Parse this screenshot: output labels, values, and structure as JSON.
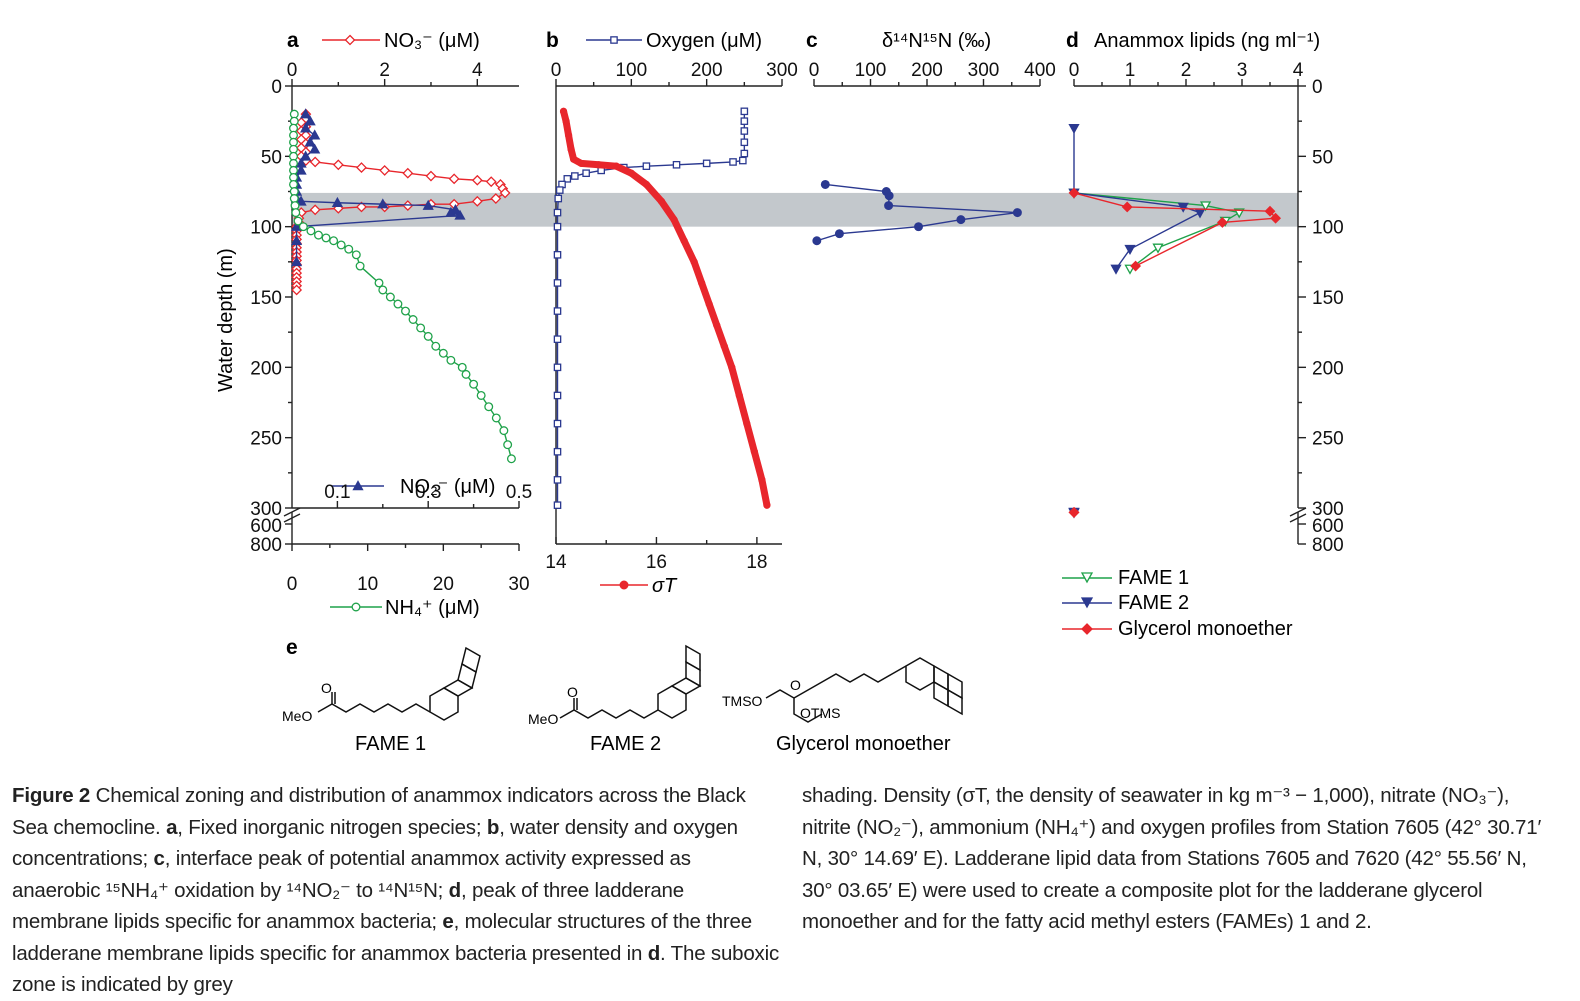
{
  "panels": {
    "a": {
      "letter": "a",
      "no3_label": "NO₃⁻ (μM)",
      "no2_label": "NO₂⁻ (μM)",
      "nh4_label": "NH₄⁺ (μM)"
    },
    "b": {
      "letter": "b",
      "oxygen_label": "Oxygen (μM)",
      "density_label": "σT"
    },
    "c": {
      "letter": "c",
      "label": "δ¹⁴N¹⁵N (‰)"
    },
    "d": {
      "letter": "d",
      "label": "Anammox lipids (ng ml⁻¹)"
    },
    "e": {
      "letter": "e"
    },
    "ylabel": "Water depth (m)"
  },
  "legend_d": [
    "FAME 1",
    "FAME 2",
    "Glycerol monoether"
  ],
  "structures": {
    "fame1": "FAME 1",
    "fame2": "FAME 2",
    "gme": "Glycerol monoether",
    "meo": "MeO",
    "o": "O",
    "tms": "TMSO",
    "otms": "OTMS"
  },
  "colors": {
    "red": "#e8262c",
    "blue": "#2b3990",
    "green": "#1fa24a",
    "shade": "#c3c8cc"
  },
  "chart_data": [
    {
      "type": "scatter",
      "panel": "a",
      "title": "",
      "ylabel": "Water depth (m)",
      "ylim": [
        0,
        300
      ],
      "broken_axis_ticks": [
        "300",
        "600",
        "800"
      ],
      "suboxic_zone": [
        76,
        100
      ],
      "axes": {
        "no3": {
          "label": "NO₃⁻ (μM)",
          "lim": [
            0,
            4.9
          ],
          "ticks": [
            0,
            2,
            4
          ]
        },
        "no2": {
          "label": "NO₂⁻ (μM)",
          "lim": [
            0,
            0.5
          ],
          "ticks": [
            0.1,
            0.3,
            0.5
          ]
        },
        "nh4": {
          "label": "NH₄⁺ (μM)",
          "lim": [
            0,
            30
          ],
          "ticks": [
            0,
            10,
            20,
            30
          ]
        }
      },
      "series": [
        {
          "name": "NO₃⁻ (μM)",
          "axis": "no3",
          "color": "#e8262c",
          "marker": "diamond-open",
          "x": [
            0.3,
            0.3,
            0.2,
            0.3,
            0.2,
            0.3,
            0.2,
            0.3,
            0.2,
            0.3,
            0.2,
            0.3,
            0.5,
            1.0,
            1.5,
            2.0,
            2.5,
            3.0,
            3.5,
            4.0,
            4.3,
            4.5,
            4.55,
            4.6,
            4.4,
            4.0,
            3.5,
            3.0,
            2.5,
            2.0,
            1.5,
            1.0,
            0.5,
            0.2,
            0.15,
            0.15,
            0.1,
            0.1,
            0.1,
            0.1,
            0.1,
            0.1,
            0.1,
            0.1,
            0.1,
            0.1,
            0.1,
            0.1,
            0.1,
            0.1,
            0.1,
            0.1
          ],
          "y": [
            20,
            23,
            26,
            29,
            32,
            35,
            38,
            41,
            44,
            47,
            50,
            53,
            54,
            56,
            58,
            60,
            62,
            64,
            66,
            67,
            68,
            70,
            73,
            76,
            80,
            82,
            84,
            84,
            85,
            86,
            86,
            87,
            88,
            90,
            94,
            97,
            100,
            103,
            106,
            109,
            112,
            115,
            118,
            121,
            124,
            127,
            130,
            133,
            136,
            139,
            142,
            145
          ]
        },
        {
          "name": "NO₂⁻ (μM)",
          "axis": "no2",
          "color": "#2b3990",
          "marker": "triangle-filled",
          "x": [
            0.03,
            0.04,
            0.03,
            0.05,
            0.04,
            0.05,
            0.03,
            0.02,
            0.02,
            0.01,
            0.01,
            0.01,
            0.01,
            0.02,
            0.1,
            0.2,
            0.3,
            0.36,
            0.35,
            0.37,
            0.01,
            0.01,
            0.01
          ],
          "y": [
            20,
            25,
            30,
            35,
            40,
            45,
            50,
            55,
            60,
            65,
            70,
            75,
            80,
            82,
            83,
            84,
            85,
            88,
            90,
            92,
            100,
            110,
            125
          ]
        },
        {
          "name": "NH₄⁺ (μM)",
          "axis": "nh4",
          "color": "#1fa24a",
          "marker": "circle-open",
          "x": [
            0.3,
            0.3,
            0.2,
            0.2,
            0.2,
            0.2,
            0.2,
            0.2,
            0.2,
            0.2,
            0.2,
            0.3,
            0.3,
            0.4,
            0.5,
            0.8,
            1.5,
            2.5,
            3.5,
            4.5,
            5.5,
            6.5,
            7.5,
            8.5,
            9.0,
            11.5,
            12.0,
            13.0,
            14.0,
            15.0,
            16.0,
            17.0,
            18.0,
            19.0,
            20.0,
            21.0,
            22.5,
            23.0,
            24.0,
            25.0,
            26.0,
            27.0,
            28.0,
            28.5,
            29.0
          ],
          "y": [
            20,
            25,
            30,
            35,
            40,
            45,
            50,
            55,
            60,
            65,
            70,
            75,
            80,
            85,
            90,
            96,
            100,
            103,
            106,
            108,
            110,
            113,
            116,
            120,
            128,
            140,
            145,
            150,
            155,
            160,
            166,
            172,
            178,
            185,
            190,
            195,
            200,
            205,
            212,
            220,
            228,
            236,
            245,
            255,
            265
          ]
        }
      ]
    },
    {
      "type": "line",
      "panel": "b",
      "title": "",
      "axes": {
        "oxygen": {
          "label": "Oxygen (μM)",
          "lim": [
            0,
            300
          ],
          "ticks": [
            0,
            100,
            200,
            300
          ]
        },
        "density": {
          "label": "σT",
          "lim": [
            14,
            18.5
          ],
          "ticks": [
            14,
            16,
            18
          ]
        }
      },
      "series": [
        {
          "name": "Oxygen (μM)",
          "axis": "oxygen",
          "color": "#2b3990",
          "marker": "square-open",
          "x": [
            250,
            250,
            250,
            250,
            250,
            248,
            235,
            200,
            160,
            120,
            90,
            60,
            40,
            25,
            15,
            8,
            5,
            3,
            2,
            2,
            2,
            2,
            2,
            2,
            2,
            2,
            2,
            2,
            2,
            2
          ],
          "y": [
            18,
            25,
            32,
            40,
            48,
            53,
            54,
            55,
            56,
            57,
            58,
            60,
            62,
            64,
            66,
            70,
            74,
            80,
            90,
            100,
            120,
            140,
            160,
            180,
            200,
            220,
            240,
            260,
            280,
            298
          ]
        },
        {
          "name": "σT",
          "axis": "density",
          "color": "#e8262c",
          "marker": "circle-filled",
          "x": [
            14.15,
            14.2,
            14.25,
            14.3,
            14.35,
            14.5,
            14.85,
            15.2,
            15.5,
            15.8,
            16.1,
            16.35,
            16.55,
            16.75,
            16.9,
            17.05,
            17.2,
            17.35,
            17.5,
            17.65,
            17.8,
            17.95,
            18.1,
            18.2
          ],
          "y": [
            18,
            25,
            35,
            45,
            52,
            55,
            56,
            57,
            62,
            70,
            82,
            95,
            110,
            125,
            140,
            155,
            170,
            185,
            200,
            220,
            240,
            260,
            280,
            298
          ]
        }
      ]
    },
    {
      "type": "line",
      "panel": "c",
      "title": "",
      "xlabel": "δ¹⁴N¹⁵N (‰)",
      "xlim": [
        0,
        400
      ],
      "xticks": [
        0,
        100,
        200,
        300,
        400
      ],
      "series": [
        {
          "name": "δ¹⁴N¹⁵N (‰)",
          "color": "#2b3990",
          "marker": "circle-filled",
          "x": [
            20,
            128,
            133,
            132,
            360,
            260,
            185,
            45,
            5
          ],
          "y": [
            70,
            75,
            78,
            85,
            90,
            95,
            100,
            105,
            110
          ]
        }
      ]
    },
    {
      "type": "line",
      "panel": "d",
      "title": "",
      "xlabel": "Anammox lipids (ng ml⁻¹)",
      "xlim": [
        0,
        4
      ],
      "xticks": [
        0,
        1,
        2,
        3,
        4
      ],
      "series": [
        {
          "name": "FAME 1",
          "color": "#1fa24a",
          "marker": "triangle-down-open",
          "x": [
            0,
            2.35,
            2.95,
            2.7,
            1.5,
            1.0
          ],
          "y": [
            76,
            85,
            90,
            96,
            115,
            130
          ]
        },
        {
          "name": "FAME 2",
          "color": "#2b3990",
          "marker": "triangle-down-filled",
          "x": [
            0,
            0,
            1.95,
            2.25,
            1.0,
            0.75,
            0,
            0,
            0
          ],
          "y": [
            30,
            76,
            86,
            90,
            116,
            130,
            301,
            311,
            318
          ]
        },
        {
          "name": "Glycerol monoether",
          "color": "#e8262c",
          "marker": "diamond-filled",
          "x": [
            0,
            0.95,
            3.5,
            3.6,
            2.65,
            1.1,
            0,
            0
          ],
          "y": [
            76,
            86,
            89,
            94,
            97,
            128,
            306,
            313
          ]
        }
      ]
    }
  ],
  "caption": {
    "fig_label": "Figure 2",
    "text_a": " Chemical zoning and distribution of anammox indicators across the Black Sea chemocline. ",
    "a": "a",
    "text_b": ", Fixed inorganic nitrogen species; ",
    "b": "b",
    "text_c": ", water density and oxygen concentrations; ",
    "c": "c",
    "text_d": ", interface peak of potential anammox activity expressed as anaerobic ¹⁵NH₄⁺ oxidation by ¹⁴NO₂⁻ to ¹⁴N¹⁵N; ",
    "d": "d",
    "text_e": ", peak of three ladderane membrane lipids specific for anammox bacteria; ",
    "e": "e",
    "text_f": ", molecular structures of the three ladderane membrane lipids specific for anammox bacteria presented in ",
    "d2": "d",
    "text_g": ". The suboxic zone is indicated by grey",
    "right": "shading. Density (σT, the density of seawater in kg m⁻³ − 1,000), nitrate (NO₃⁻), nitrite (NO₂⁻), ammonium (NH₄⁺) and oxygen profiles from Station 7605 (42° 30.71′ N, 30° 14.69′ E). Ladderane lipid data from Stations 7605 and 7620 (42° 55.56′ N, 30° 03.65′ E) were used to create a composite plot for the ladderane glycerol monoether and for the fatty acid methyl esters (FAMEs) 1 and 2."
  }
}
